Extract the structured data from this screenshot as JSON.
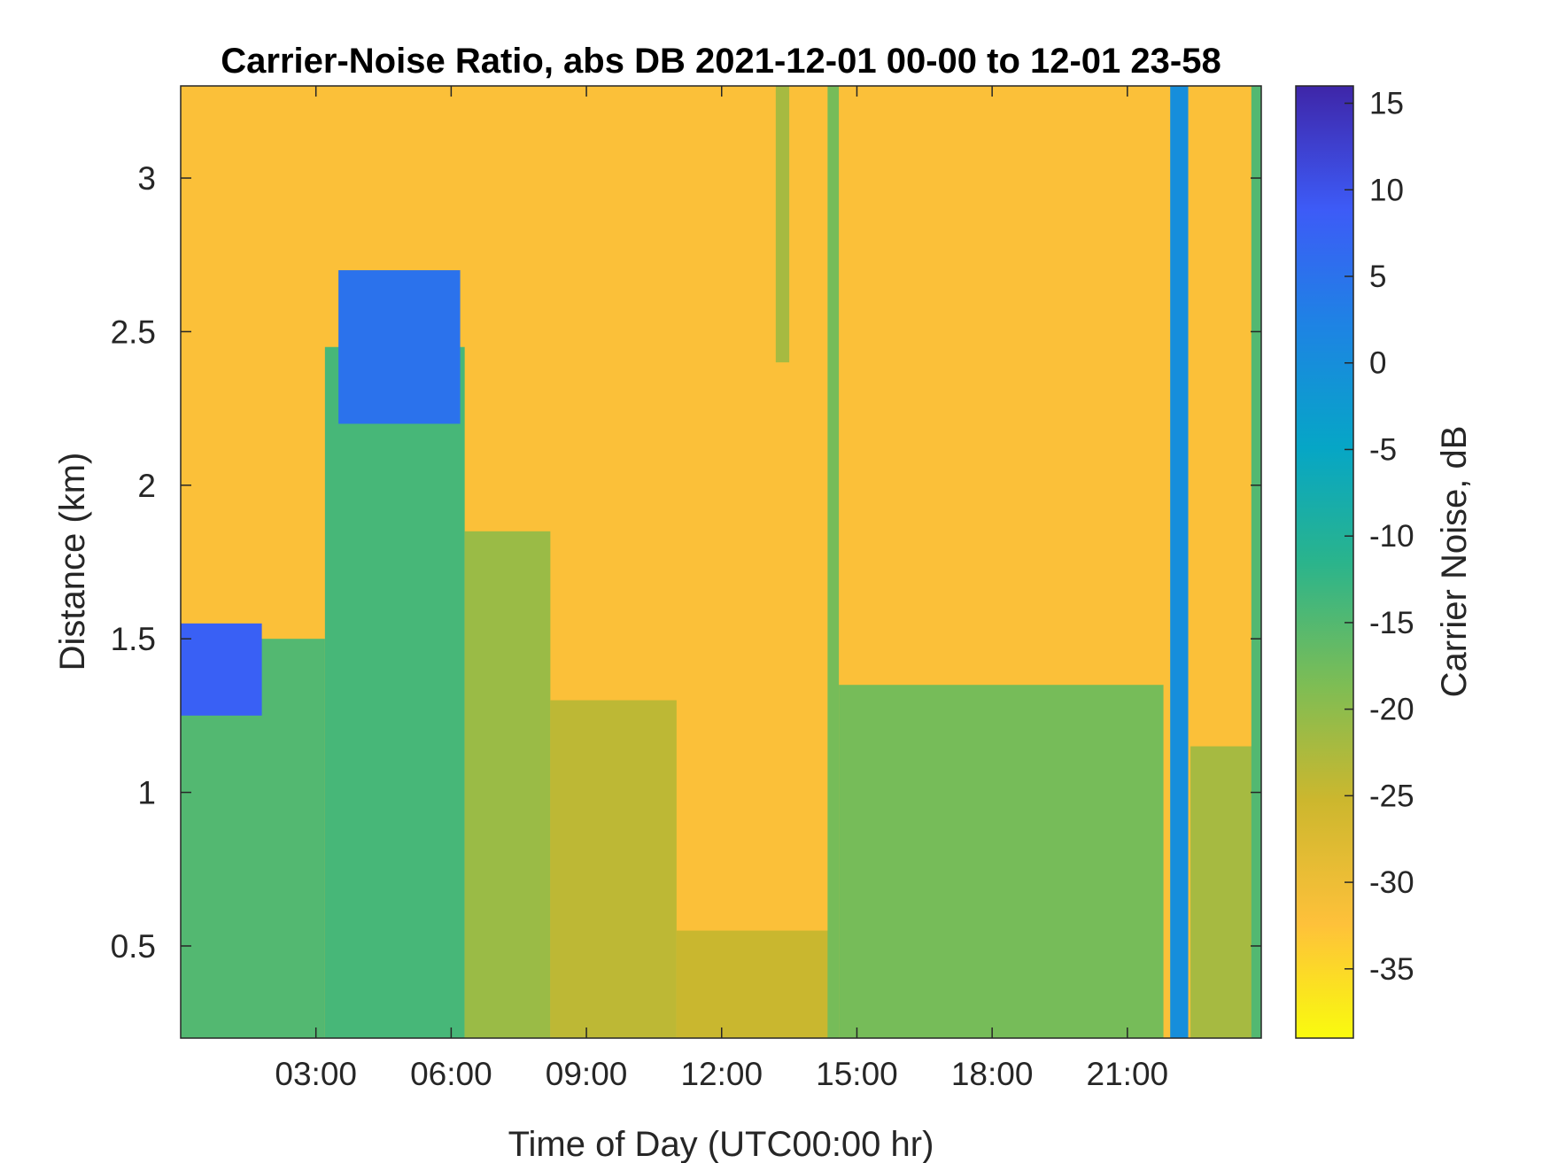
{
  "chart_data": {
    "type": "heatmap",
    "title": "Carrier-Noise Ratio, abs DB 2021-12-01 00-00 to 12-01 23-58",
    "xlabel": "Time of Day (UTC00:00 hr)",
    "ylabel": "Distance (km)",
    "colorbar_label": "Carrier Noise, dB",
    "xlim_hours": [
      0,
      23.97
    ],
    "ylim_km": [
      0.2,
      3.3
    ],
    "clim_db": [
      -39,
      16
    ],
    "x_ticks": [
      {
        "hour": 3,
        "label": "03:00"
      },
      {
        "hour": 6,
        "label": "06:00"
      },
      {
        "hour": 9,
        "label": "09:00"
      },
      {
        "hour": 12,
        "label": "12:00"
      },
      {
        "hour": 15,
        "label": "15:00"
      },
      {
        "hour": 18,
        "label": "18:00"
      },
      {
        "hour": 21,
        "label": "21:00"
      }
    ],
    "y_ticks": [
      {
        "km": 0.5,
        "label": "0.5"
      },
      {
        "km": 1,
        "label": "1"
      },
      {
        "km": 1.5,
        "label": "1.5"
      },
      {
        "km": 2,
        "label": "2"
      },
      {
        "km": 2.5,
        "label": "2.5"
      },
      {
        "km": 3,
        "label": "3"
      }
    ],
    "colorbar_ticks": [
      {
        "db": 15,
        "label": "15"
      },
      {
        "db": 10,
        "label": "10"
      },
      {
        "db": 5,
        "label": "5"
      },
      {
        "db": 0,
        "label": "0"
      },
      {
        "db": -5,
        "label": "-5"
      },
      {
        "db": -10,
        "label": "-10"
      },
      {
        "db": -15,
        "label": "-15"
      },
      {
        "db": -20,
        "label": "-20"
      },
      {
        "db": -25,
        "label": "-25"
      },
      {
        "db": -30,
        "label": "-30"
      },
      {
        "db": -35,
        "label": "-35"
      }
    ],
    "colormap": "parula",
    "background_db": -32,
    "regions": [
      {
        "name": "night-boundary-layer",
        "t0": 0,
        "t1": 3.2,
        "d0": 0.2,
        "d1": 1.5,
        "db": -15
      },
      {
        "name": "morning-layer",
        "t0": 3.2,
        "t1": 6.3,
        "d0": 0.2,
        "d1": 2.45,
        "db": -14
      },
      {
        "name": "morning-tail",
        "t0": 6.3,
        "t1": 8.2,
        "d0": 0.2,
        "d1": 1.85,
        "db": -21
      },
      {
        "name": "midday-layer",
        "t0": 8.2,
        "t1": 11,
        "d0": 0.2,
        "d1": 1.3,
        "db": -24
      },
      {
        "name": "midday-surface",
        "t0": 11,
        "t1": 14.4,
        "d0": 0.2,
        "d1": 0.55,
        "db": -25
      },
      {
        "name": "afternoon-layer",
        "t0": 14.6,
        "t1": 21.8,
        "d0": 0.2,
        "d1": 1.35,
        "db": -18
      },
      {
        "name": "late-evening-layer",
        "t0": 22.4,
        "t1": 23.97,
        "d0": 0.2,
        "d1": 1.15,
        "db": -22
      },
      {
        "name": "aerosol-top-early",
        "t0": 0,
        "t1": 1.8,
        "d0": 1.25,
        "d1": 1.55,
        "db": 8
      },
      {
        "name": "aerosol-top-morning",
        "t0": 3.5,
        "t1": 6.2,
        "d0": 2.2,
        "d1": 2.7,
        "db": 5
      },
      {
        "name": "cloud-column-22h",
        "t0": 21.95,
        "t1": 22.35,
        "d0": 0.2,
        "d1": 3.3,
        "db": 0
      },
      {
        "name": "stripe-14h",
        "t0": 14.35,
        "t1": 14.6,
        "d0": 0.2,
        "d1": 3.3,
        "db": -18
      },
      {
        "name": "stripe-13h",
        "t0": 13.2,
        "t1": 13.5,
        "d0": 2.4,
        "d1": 3.3,
        "db": -22
      },
      {
        "name": "stripe-23h",
        "t0": 23.75,
        "t1": 23.97,
        "d0": 0.2,
        "d1": 3.3,
        "db": -15
      }
    ]
  }
}
